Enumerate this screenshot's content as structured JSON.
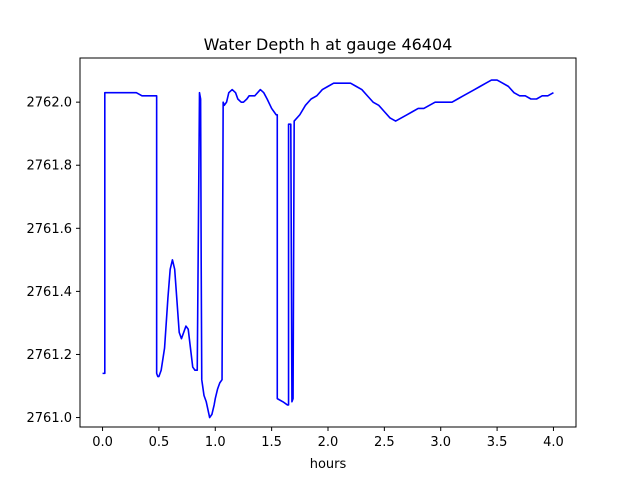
{
  "chart_data": {
    "type": "line",
    "title": "Water Depth h at gauge 46404",
    "xlabel": "hours",
    "ylabel": "",
    "xlim": [
      -0.2,
      4.2
    ],
    "ylim": [
      2760.97,
      2762.14
    ],
    "xticks": [
      0.0,
      0.5,
      1.0,
      1.5,
      2.0,
      2.5,
      3.0,
      3.5,
      4.0
    ],
    "xtick_labels": [
      "0.0",
      "0.5",
      "1.0",
      "1.5",
      "2.0",
      "2.5",
      "3.0",
      "3.5",
      "4.0"
    ],
    "yticks": [
      2761.0,
      2761.2,
      2761.4,
      2761.6,
      2761.8,
      2762.0
    ],
    "ytick_labels": [
      "2761.0",
      "2761.2",
      "2761.4",
      "2761.6",
      "2761.8",
      "2762.0"
    ],
    "grid": false,
    "colors": {
      "line": "#0000ff",
      "axes": "#000000"
    },
    "series": [
      {
        "name": "",
        "x": [
          0.0,
          0.02,
          0.02,
          0.1,
          0.2,
          0.3,
          0.35,
          0.48,
          0.48,
          0.49,
          0.5,
          0.52,
          0.55,
          0.58,
          0.6,
          0.62,
          0.64,
          0.66,
          0.68,
          0.7,
          0.72,
          0.74,
          0.76,
          0.78,
          0.8,
          0.82,
          0.84,
          0.86,
          0.865,
          0.87,
          0.875,
          0.88,
          0.9,
          0.92,
          0.95,
          0.97,
          0.99,
          1.0,
          1.02,
          1.04,
          1.06,
          1.07,
          1.08,
          1.1,
          1.12,
          1.15,
          1.18,
          1.2,
          1.23,
          1.25,
          1.28,
          1.3,
          1.35,
          1.4,
          1.43,
          1.46,
          1.5,
          1.54,
          1.55,
          1.55,
          1.6,
          1.64,
          1.65,
          1.65,
          1.66,
          1.67,
          1.68,
          1.68,
          1.69,
          1.7,
          1.75,
          1.8,
          1.85,
          1.9,
          1.95,
          2.0,
          2.05,
          2.1,
          2.15,
          2.2,
          2.25,
          2.3,
          2.35,
          2.4,
          2.45,
          2.5,
          2.55,
          2.6,
          2.65,
          2.7,
          2.75,
          2.8,
          2.85,
          2.9,
          2.95,
          3.0,
          3.05,
          3.1,
          3.15,
          3.2,
          3.25,
          3.3,
          3.35,
          3.4,
          3.45,
          3.5,
          3.55,
          3.6,
          3.65,
          3.7,
          3.75,
          3.8,
          3.85,
          3.9,
          3.95,
          4.0
        ],
        "y": [
          2761.14,
          2761.14,
          2762.03,
          2762.03,
          2762.03,
          2762.03,
          2762.02,
          2762.02,
          2761.14,
          2761.13,
          2761.13,
          2761.15,
          2761.22,
          2761.38,
          2761.47,
          2761.5,
          2761.47,
          2761.37,
          2761.27,
          2761.25,
          2761.27,
          2761.29,
          2761.28,
          2761.22,
          2761.16,
          2761.15,
          2761.15,
          2762.03,
          2762.02,
          2762.01,
          2761.5,
          2761.12,
          2761.07,
          2761.05,
          2761.0,
          2761.01,
          2761.04,
          2761.06,
          2761.09,
          2761.11,
          2761.12,
          2762.0,
          2761.99,
          2762.0,
          2762.03,
          2762.04,
          2762.03,
          2762.01,
          2762.0,
          2762.0,
          2762.01,
          2762.02,
          2762.02,
          2762.04,
          2762.03,
          2762.01,
          2761.98,
          2761.96,
          2761.96,
          2761.06,
          2761.05,
          2761.04,
          2761.04,
          2761.93,
          2761.93,
          2761.93,
          2761.05,
          2761.05,
          2761.06,
          2761.94,
          2761.96,
          2761.99,
          2762.01,
          2762.02,
          2762.04,
          2762.05,
          2762.06,
          2762.06,
          2762.06,
          2762.06,
          2762.05,
          2762.04,
          2762.02,
          2762.0,
          2761.99,
          2761.97,
          2761.95,
          2761.94,
          2761.95,
          2761.96,
          2761.97,
          2761.98,
          2761.98,
          2761.99,
          2762.0,
          2762.0,
          2762.0,
          2762.0,
          2762.01,
          2762.02,
          2762.03,
          2762.04,
          2762.05,
          2762.06,
          2762.07,
          2762.07,
          2762.06,
          2762.05,
          2762.03,
          2762.02,
          2762.02,
          2762.01,
          2762.01,
          2762.02,
          2762.02,
          2762.03
        ]
      }
    ]
  }
}
